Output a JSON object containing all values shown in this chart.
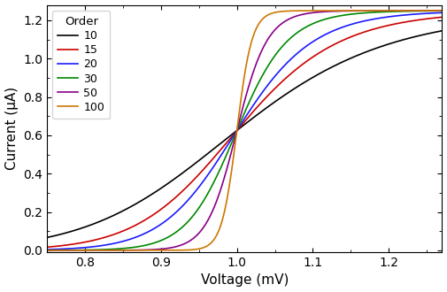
{
  "title": "",
  "xlabel": "Voltage (mV)",
  "ylabel": "Current (μA)",
  "legend_title": "Order",
  "orders": [
    10,
    15,
    20,
    30,
    50,
    100
  ],
  "colors": [
    "#000000",
    "#cc0000",
    "#1a1aff",
    "#008800",
    "#880088",
    "#cc7700"
  ],
  "V0": 1.0,
  "I_max": 1.25,
  "xlim": [
    0.75,
    1.27
  ],
  "ylim": [
    -0.01,
    1.28
  ],
  "xticks": [
    0.8,
    0.9,
    1.0,
    1.1,
    1.2
  ],
  "yticks": [
    0.0,
    0.2,
    0.4,
    0.6,
    0.8,
    1.0,
    1.2
  ],
  "figwidth": 5.05,
  "figheight": 3.3,
  "dpi": 100
}
